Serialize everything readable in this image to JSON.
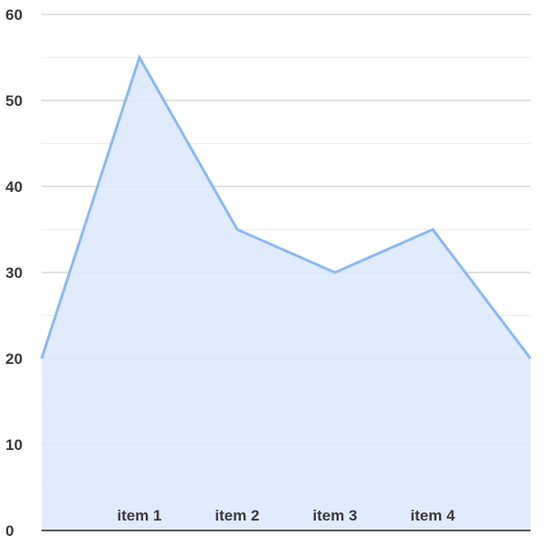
{
  "chart_data": {
    "type": "area",
    "title": "",
    "xlabel": "",
    "ylabel": "",
    "x": [
      "",
      "item 1",
      "item 2",
      "item 3",
      "item 4",
      ""
    ],
    "series": [
      {
        "values": [
          20,
          55,
          35,
          30,
          35,
          20
        ]
      }
    ],
    "ylim": [
      0,
      60
    ],
    "yticks": [
      0,
      10,
      20,
      30,
      40,
      50,
      60
    ],
    "xtick_labels": [
      "item 1",
      "item 2",
      "item 3",
      "item 4"
    ],
    "grid": true,
    "legend": "none",
    "colors": {
      "line": "#8ab8f5",
      "fill": "#dbe8fd",
      "grid_major": "#cfcfcf",
      "grid_minor": "#ececec",
      "axis": "#222222",
      "text": "#3a3a3a"
    }
  }
}
